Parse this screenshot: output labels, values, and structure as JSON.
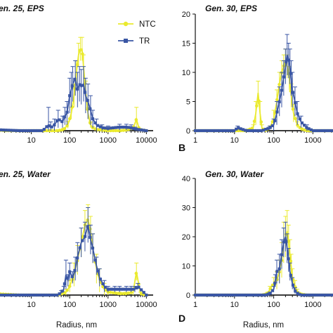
{
  "colors": {
    "ntc": "#eaea2e",
    "tr": "#3a56a4",
    "axis": "#111111"
  },
  "legend": [
    {
      "name": "NTC",
      "color": "#eaea2e",
      "marker": "circle"
    },
    {
      "name": "TR",
      "color": "#3a56a4",
      "marker": "square"
    }
  ],
  "chart_data": [
    {
      "type": "line",
      "panel_label": "",
      "title": "en. 25, EPS",
      "xlabel": "",
      "ylabel": "",
      "xscale": "log",
      "xlim": [
        1,
        15000
      ],
      "ylim": [
        0,
        20
      ],
      "xticks": [
        10,
        100,
        1000,
        10000
      ],
      "xtick_labels": [
        "10",
        "100",
        "1000",
        "10000"
      ],
      "yticks": [],
      "series": [
        {
          "name": "NTC",
          "x": [
            1,
            2,
            5,
            20,
            50,
            70,
            90,
            110,
            130,
            150,
            170,
            190,
            210,
            230,
            260,
            300,
            350,
            400,
            500,
            700,
            1000,
            2000,
            3000,
            4500,
            5500,
            6500,
            10000
          ],
          "y": [
            0.2,
            0,
            0,
            0,
            0,
            0.2,
            1,
            3,
            6,
            10,
            13,
            14,
            14,
            11,
            7,
            3,
            1,
            0.5,
            0.2,
            0.1,
            0,
            0,
            0.1,
            0.4,
            2,
            0.2,
            0
          ],
          "err": [
            0,
            0,
            0,
            0,
            0,
            0.2,
            0.6,
            1,
            2,
            2,
            2,
            2,
            2,
            2,
            1.5,
            1,
            0.5,
            0.2,
            0.1,
            0,
            0,
            0,
            0.1,
            0.3,
            2,
            0.2,
            0
          ]
        },
        {
          "name": "TR",
          "x": [
            1,
            2,
            5,
            10,
            20,
            28,
            32,
            40,
            50,
            65,
            75,
            85,
            100,
            110,
            120,
            140,
            160,
            180,
            200,
            230,
            260,
            300,
            350,
            400,
            500,
            700,
            1000,
            2000,
            3000,
            4000,
            5000,
            10000
          ],
          "y": [
            0.2,
            0.1,
            0,
            0,
            0,
            1,
            0.5,
            1,
            2,
            1.5,
            2.5,
            3,
            6,
            7,
            8,
            9,
            7,
            8,
            7.5,
            8,
            6,
            5,
            3.5,
            2,
            1,
            0.5,
            0.4,
            0.6,
            0.6,
            0.5,
            0.3,
            0
          ],
          "err": [
            0,
            0,
            0,
            0,
            0,
            3,
            1,
            1,
            1.5,
            1,
            1.5,
            2,
            3,
            3,
            3,
            3,
            3,
            3,
            3,
            3,
            3,
            3,
            2.5,
            1.5,
            1,
            0.5,
            0.4,
            0.5,
            0.5,
            0.5,
            0.3,
            0
          ]
        }
      ]
    },
    {
      "type": "line",
      "panel_label": "B",
      "title": "Gen. 30, EPS",
      "xlabel": "",
      "ylabel": "",
      "xscale": "log",
      "xlim": [
        1,
        3000
      ],
      "ylim": [
        0,
        20
      ],
      "xticks": [
        1,
        10,
        100,
        1000
      ],
      "xtick_labels": [
        "1",
        "10",
        "100",
        "1000"
      ],
      "yticks": [
        0,
        5,
        10,
        15,
        20
      ],
      "ytick_labels": [
        "0",
        "5",
        "10",
        "15",
        "20"
      ],
      "series": [
        {
          "name": "NTC",
          "x": [
            1,
            5,
            10,
            20,
            30,
            35,
            40,
            45,
            50,
            60,
            80,
            100,
            120,
            140,
            160,
            180,
            200,
            220,
            250,
            280,
            320,
            400,
            500,
            700,
            1000,
            3000
          ],
          "y": [
            0,
            0,
            0,
            0,
            0.5,
            3,
            6.5,
            3,
            0.5,
            0,
            0.5,
            2,
            5,
            8,
            10,
            11,
            12,
            11,
            9,
            6,
            3,
            1,
            0.3,
            0,
            0,
            0
          ],
          "err": [
            0,
            0,
            0,
            0,
            0.5,
            2,
            2,
            2,
            0.5,
            0,
            0.3,
            1.5,
            2,
            2,
            2,
            2,
            2,
            2,
            2,
            2,
            1.5,
            0.5,
            0.2,
            0,
            0,
            0
          ]
        },
        {
          "name": "TR",
          "x": [
            1,
            5,
            10,
            12,
            20,
            50,
            80,
            100,
            120,
            140,
            160,
            180,
            200,
            220,
            240,
            260,
            280,
            300,
            350,
            400,
            500,
            700,
            1000,
            3000
          ],
          "y": [
            0,
            0,
            0,
            0.5,
            0,
            0,
            0.5,
            1,
            3,
            5,
            7,
            9,
            11,
            13,
            12,
            11,
            9,
            7,
            5,
            3,
            1.5,
            0.5,
            0,
            0
          ],
          "err": [
            0,
            0,
            0,
            0.3,
            0,
            0,
            0.3,
            1,
            2,
            2.5,
            3,
            3,
            3,
            3.5,
            3,
            3,
            3,
            3,
            2.5,
            2,
            1,
            0.5,
            0,
            0
          ]
        }
      ]
    },
    {
      "type": "line",
      "panel_label": "",
      "title": "en. 25, Water",
      "xlabel": "Radius, nm",
      "ylabel": "",
      "xscale": "log",
      "xlim": [
        1,
        15000
      ],
      "ylim": [
        0,
        40
      ],
      "xticks": [
        10,
        100,
        1000,
        10000
      ],
      "xtick_labels": [
        "10",
        "100",
        "1000",
        "10000"
      ],
      "yticks": [],
      "series": [
        {
          "name": "NTC",
          "x": [
            1,
            5,
            20,
            50,
            80,
            100,
            130,
            160,
            200,
            250,
            300,
            350,
            400,
            500,
            600,
            800,
            1000,
            2000,
            3000,
            4500,
            5500,
            7000,
            10000
          ],
          "y": [
            0.5,
            0,
            0,
            0,
            1,
            3,
            7,
            12,
            18,
            24,
            26,
            22,
            16,
            9,
            5,
            2,
            1,
            0.5,
            0.5,
            1,
            8,
            0.5,
            0
          ],
          "err": [
            0,
            0,
            0,
            0,
            1,
            2,
            4,
            5,
            5,
            5,
            5,
            5,
            5,
            5,
            4,
            2,
            1,
            0.5,
            0.5,
            1,
            3,
            0.5,
            0
          ]
        },
        {
          "name": "TR",
          "x": [
            1,
            5,
            20,
            50,
            60,
            70,
            80,
            90,
            100,
            120,
            140,
            160,
            200,
            250,
            300,
            350,
            400,
            500,
            600,
            800,
            1000,
            1500,
            2000,
            3000,
            4000,
            5000,
            6000,
            10000
          ],
          "y": [
            0,
            0,
            0,
            0,
            1,
            2,
            7,
            5,
            8,
            6,
            9,
            13,
            18,
            20,
            24,
            19,
            16,
            10,
            6,
            3,
            2,
            2,
            2,
            2,
            2,
            2,
            3,
            0
          ],
          "err": [
            0,
            0,
            0,
            0,
            0.5,
            1,
            5,
            2,
            3,
            2,
            4,
            5,
            5,
            5,
            6,
            5,
            5,
            3,
            3,
            2,
            1,
            1,
            1,
            1,
            1,
            1,
            1,
            0
          ]
        }
      ]
    },
    {
      "type": "line",
      "panel_label": "D",
      "title": "Gen. 30, Water",
      "xlabel": "Radius, nm",
      "ylabel": "",
      "xscale": "log",
      "xlim": [
        1,
        3000
      ],
      "ylim": [
        0,
        40
      ],
      "xticks": [
        1,
        10,
        100,
        1000
      ],
      "xtick_labels": [
        "1",
        "10",
        "100",
        "1000"
      ],
      "yticks": [
        0,
        10,
        20,
        30,
        40
      ],
      "ytick_labels": [
        "0",
        "10",
        "20",
        "30",
        "40"
      ],
      "series": [
        {
          "name": "NTC",
          "x": [
            1,
            5,
            10,
            30,
            50,
            70,
            80,
            100,
            120,
            140,
            160,
            180,
            200,
            220,
            240,
            260,
            280,
            300,
            350,
            400,
            500,
            700,
            1000,
            3000
          ],
          "y": [
            0,
            0,
            0,
            0,
            0,
            0.5,
            2,
            4,
            5,
            8,
            12,
            18,
            20,
            22,
            18,
            14,
            10,
            6,
            3,
            1,
            0.3,
            0,
            0,
            0
          ],
          "err": [
            0,
            0,
            0,
            0,
            0,
            0.5,
            1,
            2,
            3,
            4,
            6,
            7,
            7,
            7,
            6,
            5,
            4,
            3,
            2,
            1,
            0.3,
            0,
            0,
            0
          ]
        },
        {
          "name": "TR",
          "x": [
            1,
            5,
            10,
            30,
            60,
            80,
            100,
            110,
            120,
            140,
            160,
            180,
            200,
            220,
            240,
            260,
            300,
            350,
            400,
            500,
            1000,
            3000
          ],
          "y": [
            0,
            0,
            0,
            0,
            0,
            0.5,
            2,
            5,
            8,
            9,
            14,
            18,
            20,
            16,
            12,
            8,
            4,
            1.5,
            0.5,
            0,
            0,
            0
          ],
          "err": [
            0,
            0,
            0,
            0,
            0,
            0.5,
            1,
            2,
            4,
            5,
            5,
            5,
            5,
            5,
            4,
            3,
            2,
            1,
            0.5,
            0,
            0,
            0
          ]
        }
      ]
    }
  ]
}
